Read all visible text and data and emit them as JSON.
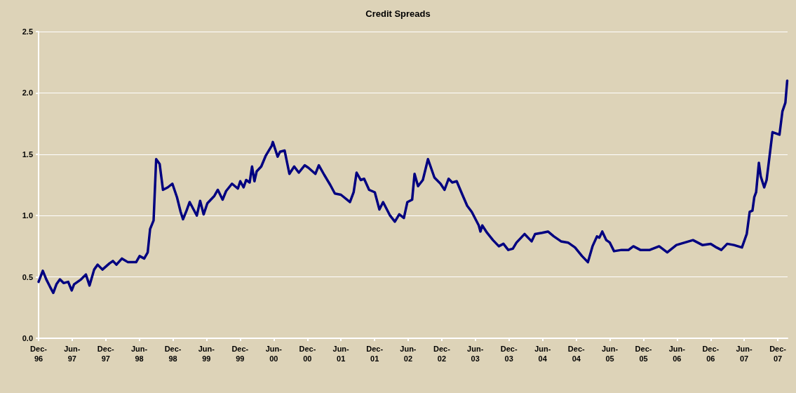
{
  "chart_data": {
    "type": "line",
    "title": "Credit Spreads",
    "x": [
      "1996-12-01",
      "1996-12-24",
      "1997-01-12",
      "1997-02-01",
      "1997-02-19",
      "1997-03-08",
      "1997-03-27",
      "1997-04-16",
      "1997-05-11",
      "1997-05-30",
      "1997-06-12",
      "1997-07-20",
      "1997-08-15",
      "1997-09-04",
      "1997-09-29",
      "1997-10-18",
      "1997-11-13",
      "1997-12-21",
      "1998-01-09",
      "1998-01-28",
      "1998-02-27",
      "1998-04-01",
      "1998-05-15",
      "1998-06-03",
      "1998-06-28",
      "1998-07-17",
      "1998-07-30",
      "1998-08-18",
      "1998-09-01",
      "1998-09-20",
      "1998-10-08",
      "1998-11-03",
      "1998-11-28",
      "1998-12-23",
      "1999-01-12",
      "1999-01-25",
      "1999-02-13",
      "1999-03-02",
      "1999-04-10",
      "1999-04-28",
      "1999-05-17",
      "1999-06-06",
      "1999-07-14",
      "1999-08-02",
      "1999-08-28",
      "1999-09-16",
      "1999-10-18",
      "1999-11-19",
      "1999-12-02",
      "1999-12-20",
      "2000-01-03",
      "2000-01-22",
      "2000-02-04",
      "2000-02-17",
      "2000-02-29",
      "2000-03-25",
      "2000-04-19",
      "2000-05-21",
      "2000-05-27",
      "2000-06-22",
      "2000-07-05",
      "2000-07-30",
      "2000-08-25",
      "2000-09-20",
      "2000-10-15",
      "2000-11-16",
      "2000-12-06",
      "2001-01-13",
      "2001-02-01",
      "2001-03-03",
      "2001-04-04",
      "2001-04-29",
      "2001-06-01",
      "2001-07-20",
      "2001-08-09",
      "2001-08-25",
      "2001-09-17",
      "2001-10-05",
      "2001-11-01",
      "2001-12-02",
      "2001-12-27",
      "2002-01-16",
      "2002-02-23",
      "2002-03-21",
      "2002-04-14",
      "2002-05-09",
      "2002-05-28",
      "2002-06-23",
      "2002-07-06",
      "2002-07-25",
      "2002-08-20",
      "2002-09-17",
      "2002-10-22",
      "2002-11-24",
      "2002-12-16",
      "2003-01-07",
      "2003-01-27",
      "2003-02-20",
      "2003-03-23",
      "2003-04-18",
      "2003-05-13",
      "2003-06-20",
      "2003-06-29",
      "2003-07-09",
      "2003-08-04",
      "2003-09-05",
      "2003-10-07",
      "2003-11-01",
      "2003-11-27",
      "2003-12-22",
      "2004-01-11",
      "2004-02-24",
      "2004-04-02",
      "2004-04-21",
      "2004-05-29",
      "2004-06-30",
      "2004-08-01",
      "2004-09-09",
      "2004-10-17",
      "2004-11-24",
      "2005-01-01",
      "2005-02-02",
      "2005-02-27",
      "2005-03-23",
      "2005-04-05",
      "2005-04-21",
      "2005-05-13",
      "2005-06-01",
      "2005-06-24",
      "2005-08-04",
      "2005-09-11",
      "2005-10-07",
      "2005-11-14",
      "2006-01-04",
      "2006-02-24",
      "2006-04-09",
      "2006-05-29",
      "2006-07-13",
      "2006-08-27",
      "2006-10-17",
      "2006-12-01",
      "2007-01-02",
      "2007-01-28",
      "2007-03-01",
      "2007-04-06",
      "2007-05-20",
      "2007-06-15",
      "2007-07-01",
      "2007-07-16",
      "2007-07-26",
      "2007-08-05",
      "2007-08-20",
      "2007-08-30",
      "2007-09-18",
      "2007-10-01",
      "2007-10-20",
      "2007-11-02",
      "2007-12-10",
      "2007-12-26",
      "2008-01-11",
      "2008-01-21"
    ],
    "series": [
      {
        "color": "#000080",
        "values": [
          0.46,
          0.55,
          0.48,
          0.42,
          0.37,
          0.44,
          0.48,
          0.45,
          0.46,
          0.39,
          0.44,
          0.48,
          0.52,
          0.43,
          0.56,
          0.6,
          0.56,
          0.61,
          0.63,
          0.6,
          0.65,
          0.62,
          0.62,
          0.67,
          0.65,
          0.7,
          0.89,
          0.96,
          1.46,
          1.42,
          1.21,
          1.23,
          1.26,
          1.15,
          1.03,
          0.97,
          1.04,
          1.11,
          1.0,
          1.12,
          1.01,
          1.1,
          1.16,
          1.21,
          1.13,
          1.2,
          1.26,
          1.22,
          1.28,
          1.23,
          1.29,
          1.27,
          1.4,
          1.28,
          1.36,
          1.4,
          1.49,
          1.57,
          1.6,
          1.48,
          1.52,
          1.53,
          1.34,
          1.4,
          1.35,
          1.41,
          1.39,
          1.34,
          1.41,
          1.33,
          1.25,
          1.18,
          1.17,
          1.11,
          1.19,
          1.35,
          1.29,
          1.3,
          1.21,
          1.19,
          1.05,
          1.11,
          1.0,
          0.95,
          1.01,
          0.98,
          1.11,
          1.13,
          1.34,
          1.24,
          1.29,
          1.46,
          1.31,
          1.26,
          1.21,
          1.3,
          1.27,
          1.28,
          1.17,
          1.08,
          1.03,
          0.92,
          0.87,
          0.92,
          0.86,
          0.8,
          0.75,
          0.77,
          0.72,
          0.73,
          0.78,
          0.85,
          0.79,
          0.85,
          0.86,
          0.87,
          0.83,
          0.79,
          0.78,
          0.74,
          0.67,
          0.62,
          0.75,
          0.83,
          0.82,
          0.87,
          0.8,
          0.78,
          0.71,
          0.72,
          0.72,
          0.75,
          0.72,
          0.72,
          0.75,
          0.7,
          0.76,
          0.78,
          0.8,
          0.76,
          0.77,
          0.74,
          0.72,
          0.77,
          0.76,
          0.74,
          0.85,
          1.03,
          1.04,
          1.15,
          1.19,
          1.43,
          1.32,
          1.23,
          1.29,
          1.52,
          1.68,
          1.66,
          1.85,
          1.92,
          2.1
        ]
      }
    ],
    "xlim": [
      "1996-12-01",
      "2008-01-23"
    ],
    "xticks": [
      {
        "value": "1996-12-01",
        "label": "Dec-96"
      },
      {
        "value": "1997-06-01",
        "label": "Jun-97"
      },
      {
        "value": "1997-12-01",
        "label": "Dec-97"
      },
      {
        "value": "1998-06-01",
        "label": "Jun-98"
      },
      {
        "value": "1998-12-01",
        "label": "Dec-98"
      },
      {
        "value": "1999-06-01",
        "label": "Jun-99"
      },
      {
        "value": "1999-12-01",
        "label": "Dec-99"
      },
      {
        "value": "2000-06-01",
        "label": "Jun-00"
      },
      {
        "value": "2000-12-01",
        "label": "Dec-00"
      },
      {
        "value": "2001-06-01",
        "label": "Jun-01"
      },
      {
        "value": "2001-12-01",
        "label": "Dec-01"
      },
      {
        "value": "2002-06-01",
        "label": "Jun-02"
      },
      {
        "value": "2002-12-01",
        "label": "Dec-02"
      },
      {
        "value": "2003-06-01",
        "label": "Jun-03"
      },
      {
        "value": "2003-12-01",
        "label": "Dec-03"
      },
      {
        "value": "2004-06-01",
        "label": "Jun-04"
      },
      {
        "value": "2004-12-01",
        "label": "Dec-04"
      },
      {
        "value": "2005-06-01",
        "label": "Jun-05"
      },
      {
        "value": "2005-12-01",
        "label": "Dec-05"
      },
      {
        "value": "2006-06-01",
        "label": "Jun-06"
      },
      {
        "value": "2006-12-01",
        "label": "Dec-06"
      },
      {
        "value": "2007-06-01",
        "label": "Jun-07"
      },
      {
        "value": "2007-12-01",
        "label": "Dec-07"
      }
    ],
    "ylim": [
      0,
      2.5
    ],
    "yticks": [
      {
        "value": 0,
        "label": "0.0"
      },
      {
        "value": 0.5,
        "label": "0.5"
      },
      {
        "value": 1,
        "label": "1.0"
      },
      {
        "value": 1.5,
        "label": "1.5"
      },
      {
        "value": 2,
        "label": "2.0"
      },
      {
        "value": 2.5,
        "label": "2.5"
      }
    ],
    "grid": "y",
    "marker": "none",
    "line_style": "solid"
  }
}
